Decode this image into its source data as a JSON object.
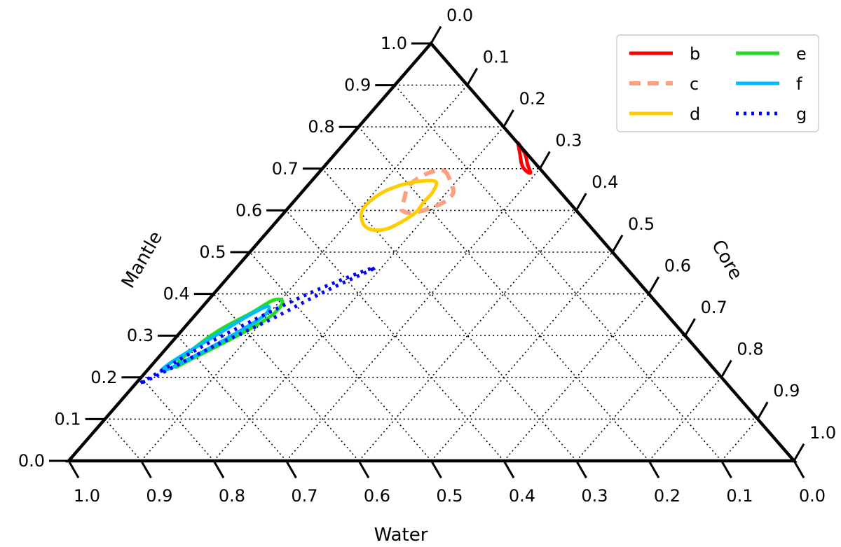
{
  "chart_data": {
    "type": "ternary",
    "axes": {
      "mantle": {
        "label": "Mantle",
        "ticks": [
          "0.0",
          "0.1",
          "0.2",
          "0.3",
          "0.4",
          "0.5",
          "0.6",
          "0.7",
          "0.8",
          "0.9",
          "1.0"
        ]
      },
      "core": {
        "label": "Core",
        "ticks": [
          "0.0",
          "0.1",
          "0.2",
          "0.3",
          "0.4",
          "0.5",
          "0.6",
          "0.7",
          "0.8",
          "0.9",
          "1.0"
        ]
      },
      "water": {
        "label": "Water",
        "ticks": [
          "1.0",
          "0.9",
          "0.8",
          "0.7",
          "0.6",
          "0.5",
          "0.4",
          "0.3",
          "0.2",
          "0.1",
          "0.0"
        ]
      }
    },
    "grid": true,
    "legend": {
      "position": "top-right",
      "columns": 2
    },
    "series": [
      {
        "name": "b",
        "color": "#ff0000",
        "style": "solid",
        "contour": [
          {
            "mantle": 0.76,
            "core": 0.24
          },
          {
            "mantle": 0.735,
            "core": 0.255
          },
          {
            "mantle": 0.71,
            "core": 0.27
          },
          {
            "mantle": 0.696,
            "core": 0.282
          },
          {
            "mantle": 0.69,
            "core": 0.292
          },
          {
            "mantle": 0.71,
            "core": 0.278
          },
          {
            "mantle": 0.735,
            "core": 0.262
          },
          {
            "mantle": 0.755,
            "core": 0.245
          }
        ]
      },
      {
        "name": "c",
        "color": "#fca082",
        "style": "dashed",
        "contour": [
          {
            "mantle": 0.695,
            "core": 0.17
          },
          {
            "mantle": 0.665,
            "core": 0.195
          },
          {
            "mantle": 0.64,
            "core": 0.21
          },
          {
            "mantle": 0.615,
            "core": 0.205
          },
          {
            "mantle": 0.595,
            "core": 0.18
          },
          {
            "mantle": 0.6,
            "core": 0.16
          },
          {
            "mantle": 0.625,
            "core": 0.15
          },
          {
            "mantle": 0.66,
            "core": 0.14
          },
          {
            "mantle": 0.688,
            "core": 0.15
          }
        ]
      },
      {
        "name": "d",
        "color": "#ffcc00",
        "style": "solid",
        "contour": [
          {
            "mantle": 0.67,
            "core": 0.17
          },
          {
            "mantle": 0.645,
            "core": 0.18
          },
          {
            "mantle": 0.62,
            "core": 0.18
          },
          {
            "mantle": 0.59,
            "core": 0.18
          },
          {
            "mantle": 0.555,
            "core": 0.16
          },
          {
            "mantle": 0.56,
            "core": 0.13
          },
          {
            "mantle": 0.6,
            "core": 0.105
          },
          {
            "mantle": 0.64,
            "core": 0.11
          },
          {
            "mantle": 0.665,
            "core": 0.135
          }
        ]
      },
      {
        "name": "e",
        "color": "#22dd22",
        "style": "solid",
        "contour": [
          {
            "mantle": 0.38,
            "core": 0.105
          },
          {
            "mantle": 0.345,
            "core": 0.105
          },
          {
            "mantle": 0.295,
            "core": 0.08
          },
          {
            "mantle": 0.24,
            "core": 0.045
          },
          {
            "mantle": 0.225,
            "core": 0.035
          },
          {
            "mantle": 0.255,
            "core": 0.035
          },
          {
            "mantle": 0.31,
            "core": 0.05
          },
          {
            "mantle": 0.355,
            "core": 0.075
          },
          {
            "mantle": 0.385,
            "core": 0.09
          }
        ]
      },
      {
        "name": "f",
        "color": "#00bbff",
        "style": "solid",
        "contour": [
          {
            "mantle": 0.37,
            "core": 0.09
          },
          {
            "mantle": 0.345,
            "core": 0.095
          },
          {
            "mantle": 0.29,
            "core": 0.07
          },
          {
            "mantle": 0.23,
            "core": 0.035
          },
          {
            "mantle": 0.215,
            "core": 0.02
          },
          {
            "mantle": 0.24,
            "core": 0.025
          },
          {
            "mantle": 0.295,
            "core": 0.05
          },
          {
            "mantle": 0.35,
            "core": 0.075
          }
        ]
      },
      {
        "name": "g",
        "color": "#0000ff",
        "style": "dotted",
        "contour": [
          {
            "mantle": 0.46,
            "core": 0.19
          },
          {
            "mantle": 0.405,
            "core": 0.15
          },
          {
            "mantle": 0.34,
            "core": 0.11
          },
          {
            "mantle": 0.27,
            "core": 0.06
          },
          {
            "mantle": 0.205,
            "core": 0.02
          },
          {
            "mantle": 0.185,
            "core": 0.005
          },
          {
            "mantle": 0.205,
            "core": 0.015
          },
          {
            "mantle": 0.27,
            "core": 0.045
          },
          {
            "mantle": 0.335,
            "core": 0.085
          },
          {
            "mantle": 0.4,
            "core": 0.13
          },
          {
            "mantle": 0.45,
            "core": 0.175
          }
        ]
      }
    ]
  }
}
